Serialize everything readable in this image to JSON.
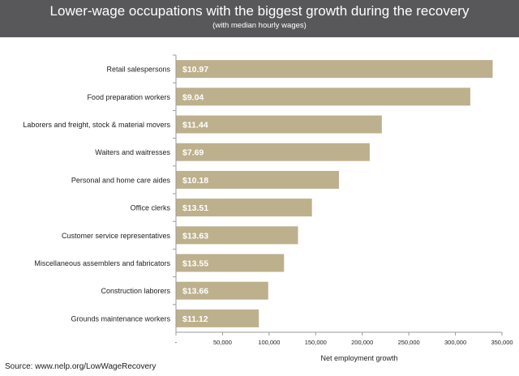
{
  "header": {
    "title": "Lower-wage occupations with the biggest growth during the recovery",
    "subtitle": "(with median hourly wages)"
  },
  "source": "Source: www.nelp.org/LowWageRecovery",
  "colors": {
    "header_bg": "#58585a",
    "bar": "#bdb08d",
    "bar_label": "#ffffff",
    "axis": "#9a9a9a",
    "text": "#222222"
  },
  "chart_data": {
    "type": "bar",
    "orientation": "horizontal",
    "xlabel": "Net employment growth",
    "xlim": [
      0,
      350000
    ],
    "grid": false,
    "x_ticks": [
      "-",
      "50,000",
      "100,000",
      "150,000",
      "200,000",
      "250,000",
      "300,000",
      "350,000"
    ],
    "categories": [
      "Retail salespersons",
      "Food preparation workers",
      "Laborers and freight, stock & material movers",
      "Waiters and waitresses",
      "Personal and home care aides",
      "Office clerks",
      "Customer service representatives",
      "Miscellaneous assemblers and fabricators",
      "Construction laborers",
      "Grounds maintenance workers"
    ],
    "values": [
      340000,
      316000,
      221000,
      208000,
      175000,
      146000,
      131000,
      116000,
      99000,
      89000
    ],
    "bar_labels": [
      "$10.97",
      "$9.04",
      "$11.44",
      "$7.69",
      "$10.18",
      "$13.51",
      "$13.63",
      "$13.55",
      "$13.66",
      "$11.12"
    ]
  }
}
